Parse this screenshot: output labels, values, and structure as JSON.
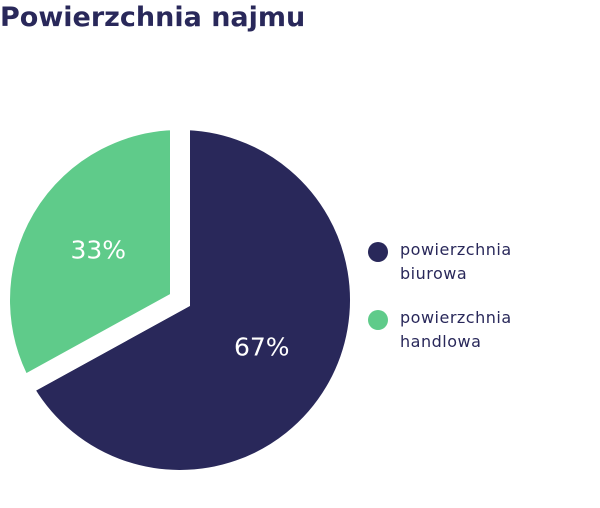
{
  "chart_data": {
    "type": "pie",
    "title": "Powierzchnia najmu",
    "categories": [
      "powierzchnia biurowa",
      "powierzchnia handlowa"
    ],
    "values": [
      67,
      33
    ],
    "value_labels": [
      "67%",
      "33%"
    ],
    "colors": [
      "#29285a",
      "#5fcb8a"
    ],
    "legend": "right"
  }
}
